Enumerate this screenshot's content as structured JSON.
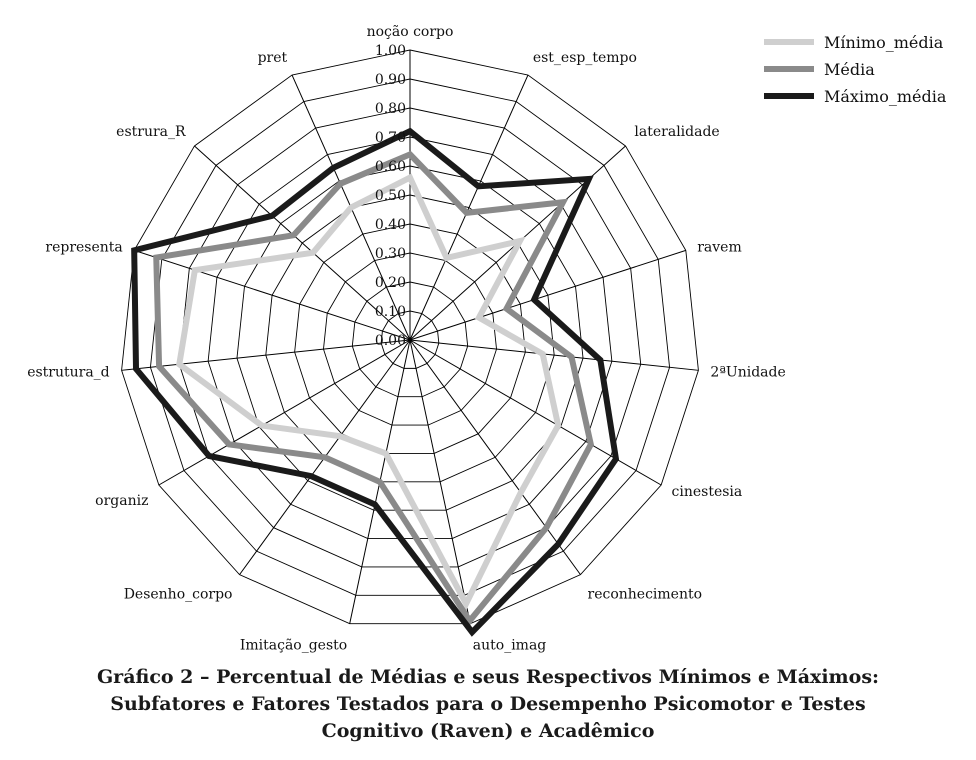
{
  "chart_data": {
    "type": "radar",
    "axes": [
      "noção corpo",
      "est_esp_tempo",
      "lateralidade",
      "ravem",
      "2ªUnidade",
      "cinestesia",
      "reconhecimento",
      "auto_imag",
      "Imitação_gesto",
      "Desenho_corpo",
      "organiz",
      "estrutura_d",
      "representa",
      "estrura_R",
      "pret"
    ],
    "rlim": [
      0.0,
      1.0
    ],
    "ticks": [
      "0.00",
      "0.10",
      "0.20",
      "0.30",
      "0.40",
      "0.50",
      "0.60",
      "0.70",
      "0.80",
      "0.90",
      "1.00"
    ],
    "grid": true,
    "legend_position": "top-right",
    "series": [
      {
        "name": "Mínimo_média",
        "color": "#cfcfcf",
        "values": [
          0.56,
          0.31,
          0.51,
          0.25,
          0.46,
          0.59,
          0.65,
          0.93,
          0.4,
          0.41,
          0.59,
          0.8,
          0.78,
          0.45,
          0.5
        ]
      },
      {
        "name": "Média",
        "color": "#8a8a8a",
        "values": [
          0.64,
          0.48,
          0.71,
          0.35,
          0.56,
          0.72,
          0.8,
          0.99,
          0.5,
          0.5,
          0.72,
          0.87,
          0.92,
          0.54,
          0.59
        ]
      },
      {
        "name": "Máximo_média",
        "color": "#1a1a1a",
        "values": [
          0.72,
          0.58,
          0.83,
          0.45,
          0.66,
          0.82,
          0.87,
          1.03,
          0.58,
          0.58,
          0.8,
          0.95,
          1.0,
          0.64,
          0.65
        ]
      }
    ]
  },
  "caption": {
    "line1": "Gráfico 2 – Percentual de Médias e seus Respectivos Mínimos e Máximos:",
    "line2": "Subfatores e Fatores Testados para o Desempenho Psicomotor e Testes",
    "line3": "Cognitivo (Raven) e Acadêmico"
  }
}
